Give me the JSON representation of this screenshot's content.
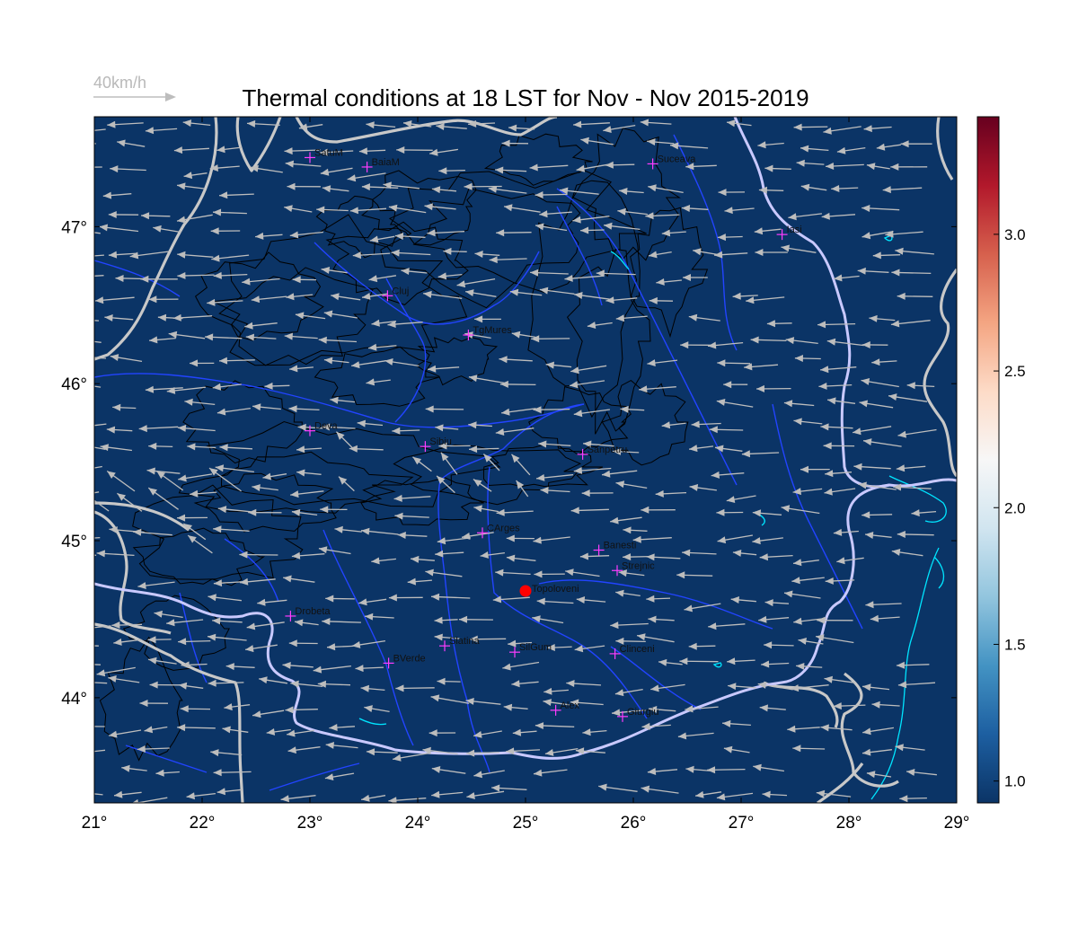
{
  "title": "Thermal conditions at 18 LST for Nov - Nov  2015-2019",
  "wind_key": {
    "label": "40km/h"
  },
  "map": {
    "lon_range": [
      21,
      29
    ],
    "lat_range": [
      43.33,
      47.7
    ],
    "background_color": "#0b3466",
    "x_ticks": [
      "21°",
      "22°",
      "23°",
      "24°",
      "25°",
      "26°",
      "27°",
      "28°",
      "29°"
    ],
    "y_ticks": [
      {
        "lat": 47,
        "label": "47°"
      },
      {
        "lat": 46,
        "label": "46°"
      },
      {
        "lat": 45,
        "label": "45°"
      },
      {
        "lat": 44,
        "label": "44°"
      }
    ]
  },
  "colorbar": {
    "range": [
      0.92,
      3.43
    ],
    "ticks": [
      "1.0",
      "1.5",
      "2.0",
      "2.5",
      "3.0"
    ],
    "tick_values": [
      1.0,
      1.5,
      2.0,
      2.5,
      3.0
    ],
    "colors": [
      "#0b3466",
      "#1d5fa1",
      "#4393c3",
      "#92c5de",
      "#d1e5f0",
      "#f7f7f7",
      "#fddbc7",
      "#f4a582",
      "#d6604d",
      "#b2182b",
      "#67001f"
    ]
  },
  "cities": [
    {
      "name": "SatuM",
      "lon": 23.0,
      "lat": 47.44
    },
    {
      "name": "BaiaM",
      "lon": 23.53,
      "lat": 47.38
    },
    {
      "name": "Suceava",
      "lon": 26.18,
      "lat": 47.4
    },
    {
      "name": "Iasi",
      "lon": 27.38,
      "lat": 46.95
    },
    {
      "name": "Cluj",
      "lon": 23.72,
      "lat": 46.56
    },
    {
      "name": "TgMures",
      "lon": 24.47,
      "lat": 46.31
    },
    {
      "name": "Deva",
      "lon": 23.0,
      "lat": 45.7
    },
    {
      "name": "Sibiu",
      "lon": 24.07,
      "lat": 45.6
    },
    {
      "name": "Sanpetru",
      "lon": 25.53,
      "lat": 45.55
    },
    {
      "name": "CArges",
      "lon": 24.6,
      "lat": 45.05
    },
    {
      "name": "Banesti",
      "lon": 25.68,
      "lat": 44.94
    },
    {
      "name": "Strejnic",
      "lon": 25.85,
      "lat": 44.81
    },
    {
      "name": "Drobeta",
      "lon": 22.82,
      "lat": 44.52
    },
    {
      "name": "Slatina",
      "lon": 24.25,
      "lat": 44.33
    },
    {
      "name": "SilGum",
      "lon": 24.9,
      "lat": 44.29
    },
    {
      "name": "Clinceni",
      "lon": 25.83,
      "lat": 44.28
    },
    {
      "name": "BVerde",
      "lon": 23.73,
      "lat": 44.22
    },
    {
      "name": "Alex",
      "lon": 25.28,
      "lat": 43.92
    },
    {
      "name": "Giurgiu",
      "lon": 25.9,
      "lat": 43.88
    }
  ],
  "highlight_station": {
    "name": "Topoloveni",
    "lon": 25.0,
    "lat": 44.68,
    "color": "#ff0000"
  },
  "colors": {
    "border": "#c8c8c8",
    "rivers": "#2244ff",
    "lakes": "#00e5ff",
    "contours": "#000000",
    "arrows": "#bdbdbd",
    "city_marker": "#ff3cff"
  }
}
